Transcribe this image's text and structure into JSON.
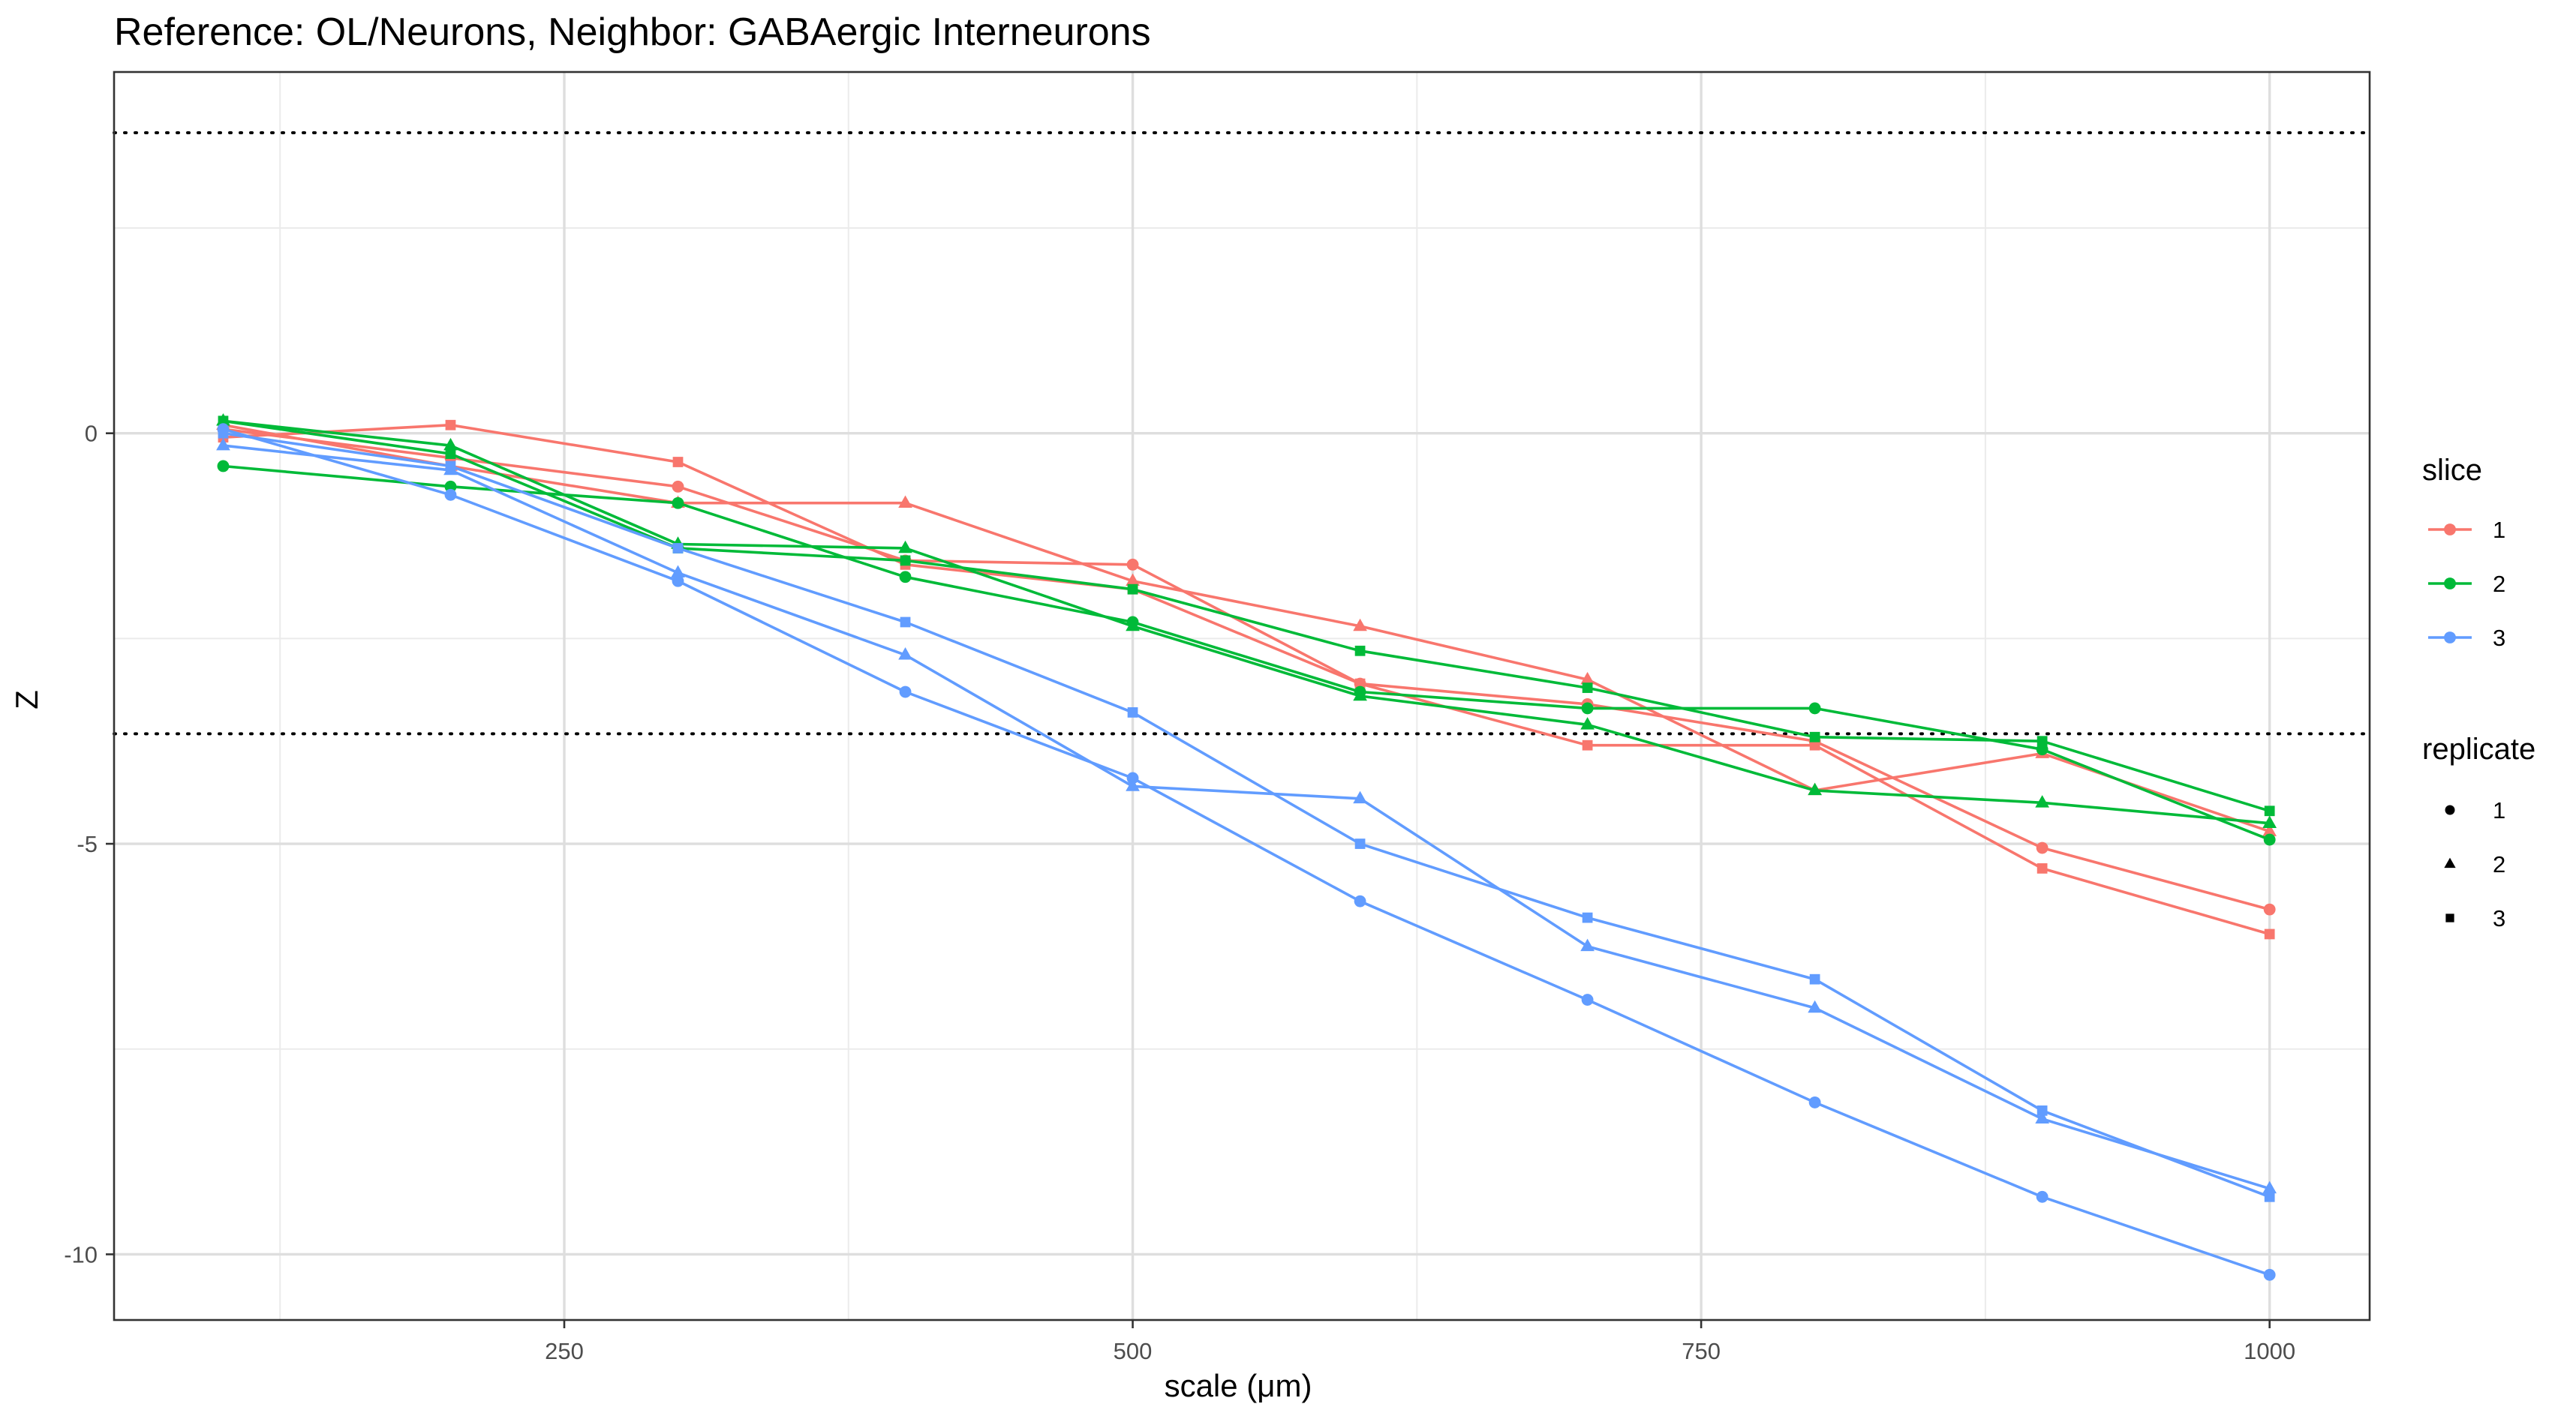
{
  "chart_data": {
    "type": "line",
    "title": "Reference: OL/Neurons, Neighbor: GABAergic Interneurons",
    "xlabel": "scale (μm)",
    "ylabel": "Z",
    "xlim": [
      52,
      1044
    ],
    "ylim": [
      -10.8,
      4.4
    ],
    "x_ticks": [
      250,
      500,
      750,
      1000
    ],
    "x_tick_labels": [
      "250",
      "500",
      "750",
      "1000"
    ],
    "y_ticks": [
      0,
      -5,
      -10
    ],
    "y_tick_labels": [
      "0",
      "-5",
      "-10"
    ],
    "x_minor_gridlines": [
      125,
      375,
      625,
      875
    ],
    "y_minor_gridlines": [
      2.5,
      -2.5,
      -7.5
    ],
    "reference_lines": [
      3.66,
      -3.66
    ],
    "reference_line_style": "dotted",
    "grid": true,
    "legend_position": "right",
    "legend": {
      "color_title": "slice",
      "color_entries": [
        {
          "label": "1",
          "color": "#F8766D"
        },
        {
          "label": "2",
          "color": "#00BA38"
        },
        {
          "label": "3",
          "color": "#619CFF"
        }
      ],
      "shape_title": "replicate",
      "shape_entries": [
        {
          "label": "1",
          "shape": "circle"
        },
        {
          "label": "2",
          "shape": "triangle"
        },
        {
          "label": "3",
          "shape": "square"
        }
      ]
    },
    "x": [
      100,
      200,
      300,
      400,
      500,
      600,
      700,
      800,
      900,
      1000
    ],
    "series": [
      {
        "slice": "1",
        "replicate": "1",
        "color": "#F8766D",
        "shape": "circle",
        "values": [
          0.05,
          -0.3,
          -0.65,
          -1.55,
          -1.6,
          -3.05,
          -3.3,
          -3.75,
          -5.05,
          -5.8
        ]
      },
      {
        "slice": "1",
        "replicate": "2",
        "color": "#F8766D",
        "shape": "triangle",
        "values": [
          0.1,
          -0.4,
          -0.85,
          -0.85,
          -1.8,
          -2.35,
          -3.0,
          -4.35,
          -3.9,
          -4.85
        ]
      },
      {
        "slice": "1",
        "replicate": "3",
        "color": "#F8766D",
        "shape": "square",
        "values": [
          -0.05,
          0.1,
          -0.35,
          -1.6,
          -1.9,
          -3.05,
          -3.8,
          -3.8,
          -5.3,
          -6.1
        ]
      },
      {
        "slice": "2",
        "replicate": "1",
        "color": "#00BA38",
        "shape": "circle",
        "values": [
          -0.4,
          -0.65,
          -0.85,
          -1.75,
          -2.3,
          -3.15,
          -3.35,
          -3.35,
          -3.85,
          -4.95
        ]
      },
      {
        "slice": "2",
        "replicate": "2",
        "color": "#00BA38",
        "shape": "triangle",
        "values": [
          0.15,
          -0.15,
          -1.35,
          -1.4,
          -2.35,
          -3.2,
          -3.55,
          -4.35,
          -4.5,
          -4.75
        ]
      },
      {
        "slice": "2",
        "replicate": "3",
        "color": "#00BA38",
        "shape": "square",
        "values": [
          0.15,
          -0.25,
          -1.4,
          -1.55,
          -1.9,
          -2.65,
          -3.1,
          -3.7,
          -3.75,
          -4.6
        ]
      },
      {
        "slice": "3",
        "replicate": "1",
        "color": "#619CFF",
        "shape": "circle",
        "values": [
          0.05,
          -0.75,
          -1.8,
          -3.15,
          -4.2,
          -5.7,
          -6.9,
          -8.15,
          -9.3,
          -10.25
        ]
      },
      {
        "slice": "3",
        "replicate": "2",
        "color": "#619CFF",
        "shape": "triangle",
        "values": [
          -0.15,
          -0.45,
          -1.7,
          -2.7,
          -4.3,
          -4.45,
          -6.25,
          -7.0,
          -8.35,
          -9.2
        ]
      },
      {
        "slice": "3",
        "replicate": "3",
        "color": "#619CFF",
        "shape": "square",
        "values": [
          0.0,
          -0.4,
          -1.4,
          -2.3,
          -3.4,
          -5.0,
          -5.9,
          -6.65,
          -8.25,
          -9.3
        ]
      }
    ]
  }
}
